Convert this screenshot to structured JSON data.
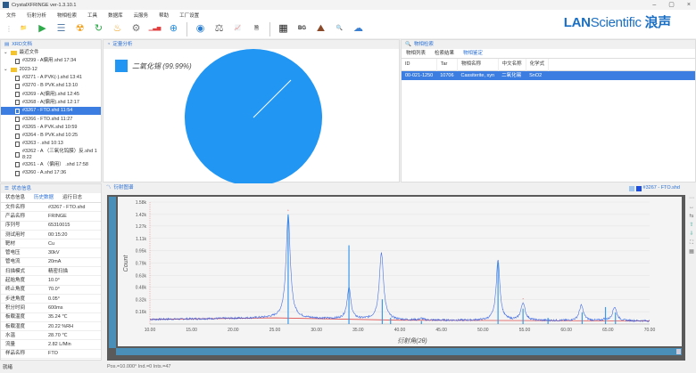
{
  "window": {
    "title": "CrystalXFRINGE ver-1.3.10.1",
    "min": "–",
    "max": "▢",
    "close": "×"
  },
  "menu": [
    "文件",
    "衍射分析",
    "物相检索",
    "工具",
    "数据库",
    "云服务",
    "帮助",
    "工厂设置"
  ],
  "toolbar": [
    {
      "icon": "open-folder-icon",
      "glyph": "📁",
      "color": "#3a8fd8"
    },
    {
      "icon": "play-icon",
      "glyph": "▶",
      "color": "#2eaa4a"
    },
    {
      "icon": "list-icon",
      "glyph": "☰",
      "color": "#5a7fa8"
    },
    {
      "icon": "radiation-icon",
      "glyph": "☢",
      "color": "#f39c12"
    },
    {
      "icon": "refresh-icon",
      "glyph": "↻",
      "color": "#2eaa4a"
    },
    {
      "icon": "heater-icon",
      "glyph": "♨",
      "color": "#f0a020"
    },
    {
      "icon": "settings-icon",
      "glyph": "⚙",
      "color": "#777"
    },
    {
      "icon": "spectrum-icon",
      "glyph": "▁▃▅",
      "color": "#e04040"
    },
    {
      "icon": "crosshair-icon",
      "glyph": "⊕",
      "color": "#2a8fe0"
    },
    {
      "icon": "fingerprint-icon",
      "glyph": "◉",
      "color": "#2a7fd4"
    },
    {
      "icon": "scale-icon",
      "glyph": "⚖",
      "color": "#666"
    },
    {
      "icon": "trend-chart-icon",
      "glyph": "📈",
      "color": "#f07020"
    },
    {
      "icon": "document-save-icon",
      "glyph": "🗎",
      "color": "#666"
    },
    {
      "icon": "grid-icon",
      "glyph": "▦",
      "color": "#222"
    },
    {
      "icon": "bg-icon",
      "glyph": "BG",
      "color": "#222"
    },
    {
      "icon": "mountain-flag-icon",
      "glyph": "⛰",
      "color": "#8a4a2a"
    },
    {
      "icon": "search-analysis-icon",
      "glyph": "🔍",
      "color": "#2a8fe0"
    },
    {
      "icon": "database-cloud-icon",
      "glyph": "☁",
      "color": "#3a7fd0"
    }
  ],
  "logo": {
    "brand_bold": "LAN",
    "brand_rest": "Scientific",
    "cn": "浪声"
  },
  "xrd_docs": {
    "title": "XRD文档",
    "groups": [
      {
        "name": "最近文件",
        "items": [
          "#3299 - A偏用.shd 17:34"
        ]
      },
      {
        "name": "2023-12",
        "items": [
          "#3271 - A PVK(-).shd 13:41",
          "#3270 - B PVK.shd 13:10",
          "#3269 - A(偏用).shd 12:45",
          "#3268 - A(偏用).shd 12:17",
          "#3267 - FTO.shd 11:54",
          "#3266 - FTO.shd 11:27",
          "#3265 - A PVK.shd 10:59",
          "#3264 - B PVK.shd 10:25",
          "#3263 - .shd 10:13",
          "#3262 - A （三氧化钨膜）反.shd 18:22",
          "#3261 - A （偏用） .shd 17:58",
          "#3260 - A.shd 17:36"
        ]
      }
    ],
    "selected": "#3267 - FTO.shd 11:54"
  },
  "status_panel": {
    "title": "状态信息",
    "tabs": [
      "状态信息",
      "历史数据",
      "运行日志"
    ],
    "active_tab": "历史数据",
    "rows": [
      [
        "文件名称",
        "#3267 - FTO.shd"
      ],
      [
        "产品名称",
        "FRINGE"
      ],
      [
        "序列号",
        "65310015"
      ],
      [
        "测试用时",
        "00:15:20"
      ],
      [
        "靶材",
        "Cu"
      ],
      [
        "管电压",
        "30kV"
      ],
      [
        "管电流",
        "20mA"
      ],
      [
        "扫描模式",
        "精密扫描"
      ],
      [
        "起始角度",
        "10.0°"
      ],
      [
        "终止角度",
        "70.0°"
      ],
      [
        "步进角度",
        "0.05°"
      ],
      [
        "积分时间",
        "600ms"
      ],
      [
        "板载温度",
        "35.24 ℃"
      ],
      [
        "板载湿度",
        "20.22 %RH"
      ],
      [
        "水温",
        "28.70 ℃"
      ],
      [
        "流量",
        "2.82 L/Min"
      ],
      [
        "样品名称",
        "FTO"
      ]
    ]
  },
  "quant": {
    "title": "定量分析",
    "legend": "二氧化锡 (99.99%)",
    "color": "#2196f3",
    "percent": 99.99
  },
  "phase": {
    "title": "物相检索",
    "tabs": [
      "物相列表",
      "检索结果",
      "物相鉴定"
    ],
    "active_tab": "物相鉴定",
    "columns": [
      "ID",
      "Tar",
      "物相名称",
      "中文名称",
      "化学式"
    ],
    "rows": [
      [
        "00-021-1250",
        "10706",
        "Cassiterite, syn",
        "二氧化锡",
        "SnO2"
      ]
    ]
  },
  "pattern": {
    "title": "衍射图谱",
    "file_label": "#3267 - FTO.shd",
    "series_color": "#1a4de0"
  },
  "chart_data": {
    "type": "line",
    "xlabel": "衍射角(2θ)",
    "ylabel": "Count",
    "xlim": [
      10,
      70
    ],
    "ylim": [
      0,
      1.58
    ],
    "xticks": [
      "10.00",
      "15.00",
      "20.00",
      "25.00",
      "30.00",
      "35.00",
      "40.00",
      "45.00",
      "50.00",
      "55.00",
      "60.00",
      "65.00",
      "70.00"
    ],
    "yticks": [
      "0.16k",
      "0.32k",
      "0.48k",
      "0.63k",
      "0.79k",
      "0.95k",
      "1.11k",
      "1.27k",
      "1.42k",
      "1.58k"
    ],
    "grid": true,
    "background_k": [
      [
        10,
        0.06
      ],
      [
        25,
        0.08
      ],
      [
        40,
        0.05
      ],
      [
        70,
        0.04
      ]
    ],
    "peaks": [
      {
        "x": 26.6,
        "y": 1.42,
        "w": 0.45
      },
      {
        "x": 33.9,
        "y": 0.47,
        "w": 0.4
      },
      {
        "x": 37.8,
        "y": 0.92,
        "w": 0.45
      },
      {
        "x": 42.6,
        "y": 0.07,
        "w": 0.4
      },
      {
        "x": 51.8,
        "y": 0.83,
        "w": 0.4
      },
      {
        "x": 54.8,
        "y": 0.27,
        "w": 0.45
      },
      {
        "x": 61.8,
        "y": 0.24,
        "w": 0.45
      },
      {
        "x": 65.8,
        "y": 0.22,
        "w": 0.45
      },
      {
        "x": 64.6,
        "y": 0.06,
        "w": 0.3
      }
    ],
    "reference_sticks": [
      [
        26.6,
        1.42
      ],
      [
        33.9,
        1.02
      ],
      [
        37.9,
        0.32
      ],
      [
        38.9,
        0.08
      ],
      [
        42.6,
        0.04
      ],
      [
        51.8,
        0.8
      ],
      [
        54.8,
        0.2
      ],
      [
        57.8,
        0.08
      ],
      [
        61.9,
        0.15
      ],
      [
        64.7,
        0.22
      ],
      [
        65.9,
        0.15
      ]
    ]
  },
  "statusbar": {
    "left": "就绪",
    "readout": "Pos.=10.000° Ind.=0 Ints.=47"
  }
}
